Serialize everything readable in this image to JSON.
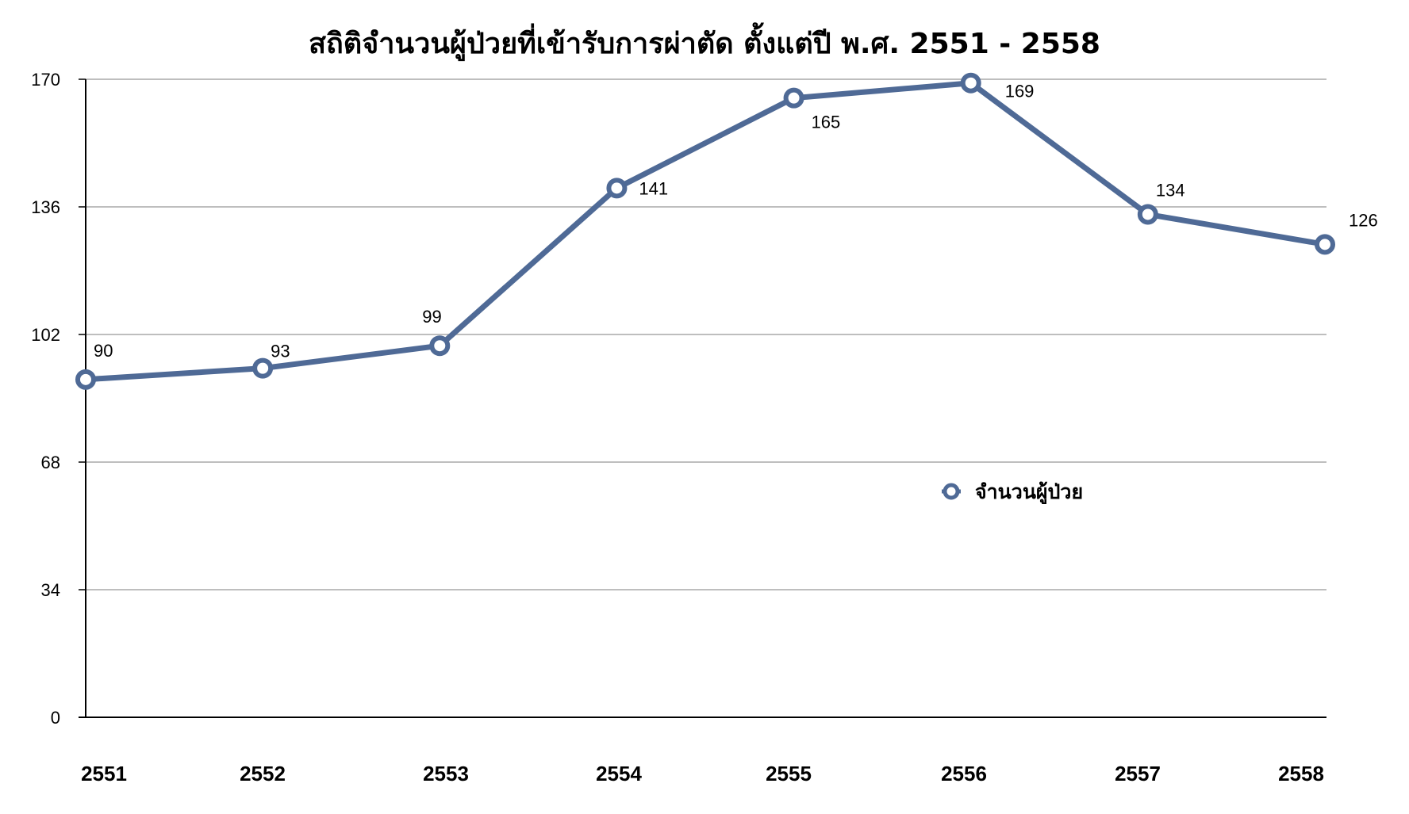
{
  "chart_data": {
    "type": "line",
    "title": "สถิติจำนวนผู้ป่วยที่เข้ารับการผ่าตัด ตั้งแต่ปี พ.ศ. 2551 - 2558",
    "categories": [
      "2551",
      "2552",
      "2553",
      "2554",
      "2555",
      "2556",
      "2557",
      "2558"
    ],
    "series": [
      {
        "name": "จำนวนผู้ป่วย",
        "values": [
          90,
          93,
          99,
          141,
          165,
          169,
          134,
          126
        ]
      }
    ],
    "yticks": [
      "0",
      "34",
      "68",
      "102",
      "136",
      "170"
    ],
    "ylim": [
      0,
      170
    ],
    "grid": true,
    "legend": "right",
    "line_color": "#4f6a96"
  }
}
